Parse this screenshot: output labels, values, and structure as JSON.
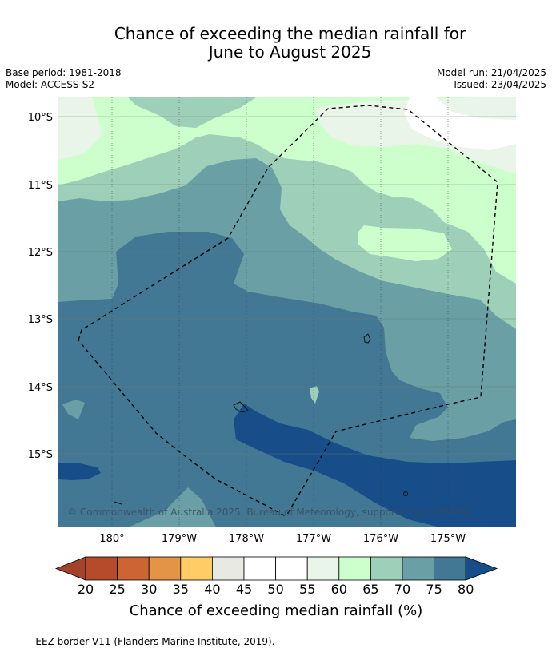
{
  "title": {
    "line1": "Chance of exceeding the median rainfall for",
    "line2": "June to August 2025"
  },
  "meta": {
    "base_period": "Base period: 1981-2018",
    "model": "Model: ACCESS-S2",
    "model_run": "Model run: 21/04/2025",
    "issued": "Issued: 23/04/2025"
  },
  "map": {
    "lat_labels": [
      "10°S",
      "11°S",
      "12°S",
      "13°S",
      "14°S",
      "15°S"
    ],
    "lon_labels": [
      "180°",
      "179°W",
      "178°W",
      "177°W",
      "176°W",
      "175°W"
    ],
    "copyright": "© Commonwealth of Australia 2025, Bureau of Meteorology, supported by COSPPac",
    "colors": {
      "c55_60": "#eaf5ea",
      "c60_65": "#ccffcc",
      "c65_70": "#9ecfb8",
      "c70_75": "#6a9fa6",
      "c75_80": "#437894",
      "c80_plus": "#174e8a",
      "white": "#ffffff"
    }
  },
  "colorbar": {
    "ticks": [
      "20",
      "25",
      "30",
      "35",
      "40",
      "45",
      "50",
      "55",
      "60",
      "65",
      "70",
      "75",
      "80"
    ],
    "colors": [
      "#a3422a",
      "#b54b2b",
      "#cc6533",
      "#e49446",
      "#ffcc66",
      "#e9e9e4",
      "#ffffff",
      "#ffffff",
      "#eaf5ea",
      "#ccffcc",
      "#9ecfb8",
      "#6a9fa6",
      "#437894",
      "#174e8a"
    ],
    "label": "Chance of exceeding median rainfall (%)"
  },
  "footnote": "--  --  -- EEZ border V11 (Flanders Marine Institute, 2019)."
}
